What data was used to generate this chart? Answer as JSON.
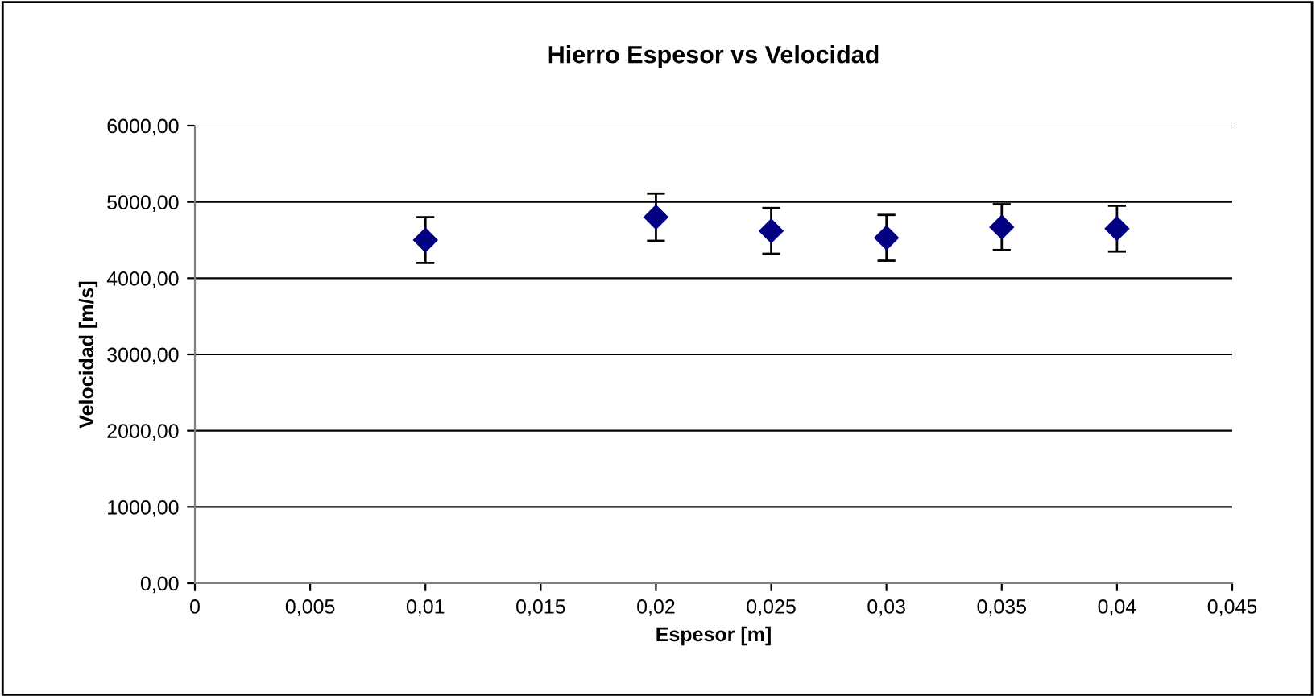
{
  "chart_data": {
    "type": "scatter",
    "title": "Hierro Espesor vs Velocidad",
    "xlabel": "Espesor [m]",
    "ylabel": "Velocidad [m/s]",
    "x": [
      0.01,
      0.02,
      0.025,
      0.03,
      0.035,
      0.04
    ],
    "values": [
      4500,
      4800,
      4620,
      4530,
      4670,
      4650
    ],
    "errors": [
      300,
      310,
      300,
      300,
      300,
      300
    ],
    "color": "#000080",
    "marker": "diamond",
    "grid": "y",
    "xlim": [
      0,
      0.045
    ],
    "xticks": [
      {
        "value": 0,
        "label": "0"
      },
      {
        "value": 0.005,
        "label": "0,005"
      },
      {
        "value": 0.01,
        "label": "0,01"
      },
      {
        "value": 0.015,
        "label": "0,015"
      },
      {
        "value": 0.02,
        "label": "0,02"
      },
      {
        "value": 0.025,
        "label": "0,025"
      },
      {
        "value": 0.03,
        "label": "0,03"
      },
      {
        "value": 0.035,
        "label": "0,035"
      },
      {
        "value": 0.04,
        "label": "0,04"
      },
      {
        "value": 0.045,
        "label": "0,045"
      }
    ],
    "ylim": [
      0,
      6000
    ],
    "yticks": [
      {
        "value": 0,
        "label": "0,00"
      },
      {
        "value": 1000,
        "label": "1000,00"
      },
      {
        "value": 2000,
        "label": "2000,00"
      },
      {
        "value": 3000,
        "label": "3000,00"
      },
      {
        "value": 4000,
        "label": "4000,00"
      },
      {
        "value": 5000,
        "label": "5000,00"
      },
      {
        "value": 6000,
        "label": "6000,00"
      }
    ]
  }
}
